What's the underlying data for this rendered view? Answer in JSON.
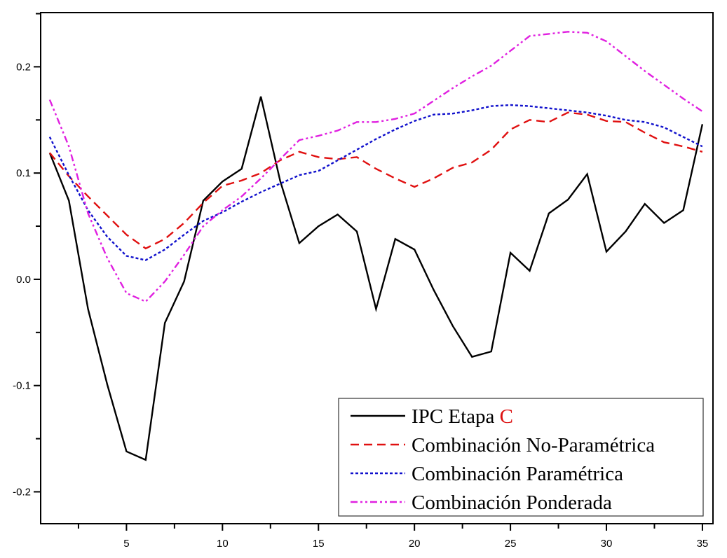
{
  "chart_data": {
    "type": "line",
    "title": "",
    "xlabel": "",
    "ylabel": "",
    "xlim": [
      0.53,
      35.55
    ],
    "ylim": [
      -0.23,
      0.251
    ],
    "grid": false,
    "legend_position": "bottom-right",
    "x_ticks": [
      5,
      10,
      15,
      20,
      25,
      30,
      35
    ],
    "x_tick_labels": [
      "5",
      "10",
      "15",
      "20",
      "25",
      "30",
      "35"
    ],
    "y_ticks": [
      -0.2,
      -0.1,
      0.0,
      0.1,
      0.2
    ],
    "y_tick_labels": [
      "-0.2",
      "-0.1",
      "0.0",
      "0.1",
      "0.2"
    ],
    "x": [
      1,
      2,
      3,
      4,
      5,
      6,
      7,
      8,
      9,
      10,
      11,
      12,
      13,
      14,
      15,
      16,
      17,
      18,
      19,
      20,
      21,
      22,
      23,
      24,
      25,
      26,
      27,
      28,
      29,
      30,
      31,
      32,
      33,
      34,
      35
    ],
    "series": [
      {
        "name": "IPC Etapa ",
        "name_highlight": "C",
        "highlight_color": "#dd1111",
        "color": "#000000",
        "dash": "solid",
        "values": [
          0.119,
          0.074,
          -0.028,
          -0.099,
          -0.162,
          -0.17,
          -0.041,
          -0.002,
          0.074,
          0.092,
          0.104,
          0.172,
          0.093,
          0.034,
          0.05,
          0.061,
          0.045,
          -0.028,
          0.038,
          0.028,
          -0.01,
          -0.044,
          -0.073,
          -0.068,
          0.025,
          0.008,
          0.062,
          0.075,
          0.099,
          0.026,
          0.045,
          0.071,
          0.053,
          0.065,
          0.146
        ]
      },
      {
        "name": "Combinación No-Paramétrica",
        "color": "#e01010",
        "dash": "dash",
        "values": [
          0.119,
          0.097,
          0.078,
          0.06,
          0.042,
          0.029,
          0.038,
          0.053,
          0.072,
          0.088,
          0.093,
          0.1,
          0.112,
          0.12,
          0.115,
          0.113,
          0.115,
          0.104,
          0.095,
          0.087,
          0.095,
          0.105,
          0.11,
          0.122,
          0.141,
          0.15,
          0.148,
          0.157,
          0.155,
          0.149,
          0.148,
          0.138,
          0.129,
          0.125,
          0.12
        ]
      },
      {
        "name": "Combinación Paramétrica",
        "color": "#1010cc",
        "dash": "dot",
        "values": [
          0.134,
          0.098,
          0.065,
          0.04,
          0.022,
          0.018,
          0.028,
          0.042,
          0.055,
          0.063,
          0.073,
          0.082,
          0.09,
          0.098,
          0.102,
          0.112,
          0.122,
          0.132,
          0.141,
          0.149,
          0.155,
          0.156,
          0.159,
          0.163,
          0.164,
          0.163,
          0.161,
          0.159,
          0.157,
          0.154,
          0.15,
          0.148,
          0.143,
          0.134,
          0.125
        ]
      },
      {
        "name": "Combinación Ponderada",
        "color": "#e020e0",
        "dash": "dashdotdot",
        "values": [
          0.169,
          0.125,
          0.062,
          0.02,
          -0.013,
          -0.021,
          -0.002,
          0.023,
          0.05,
          0.065,
          0.078,
          0.095,
          0.113,
          0.131,
          0.135,
          0.14,
          0.148,
          0.148,
          0.151,
          0.156,
          0.168,
          0.18,
          0.191,
          0.201,
          0.215,
          0.229,
          0.231,
          0.233,
          0.232,
          0.224,
          0.21,
          0.196,
          0.183,
          0.17,
          0.158
        ]
      }
    ]
  }
}
